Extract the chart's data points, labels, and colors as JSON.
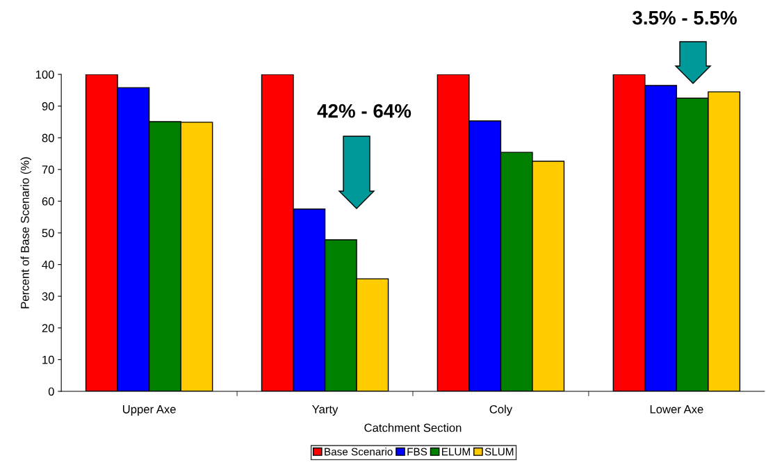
{
  "chart_data": {
    "type": "bar",
    "xlabel": "Catchment Section",
    "ylabel": "Percent of Base Scenario (%)",
    "categories": [
      "Upper Axe",
      "Yarty",
      "Coly",
      "Lower Axe"
    ],
    "series": [
      {
        "name": "Base Scenario",
        "color": "#ff0000",
        "values": [
          100,
          100,
          100,
          100
        ]
      },
      {
        "name": "FBS",
        "color": "#0000ff",
        "values": [
          95.8,
          57.5,
          85.3,
          96.5
        ]
      },
      {
        "name": "ELUM",
        "color": "#008000",
        "values": [
          85.1,
          47.8,
          75.4,
          92.5
        ]
      },
      {
        "name": "SLUM",
        "color": "#ffcc00",
        "values": [
          84.9,
          35.5,
          72.6,
          94.5
        ]
      }
    ],
    "ylim": [
      0,
      100
    ],
    "yticks": [
      0,
      10,
      20,
      30,
      40,
      50,
      60,
      70,
      80,
      90,
      100
    ],
    "legend": "bottom",
    "grid": false,
    "annotations": [
      "42% - 64%",
      "3.5% - 5.5%"
    ]
  }
}
